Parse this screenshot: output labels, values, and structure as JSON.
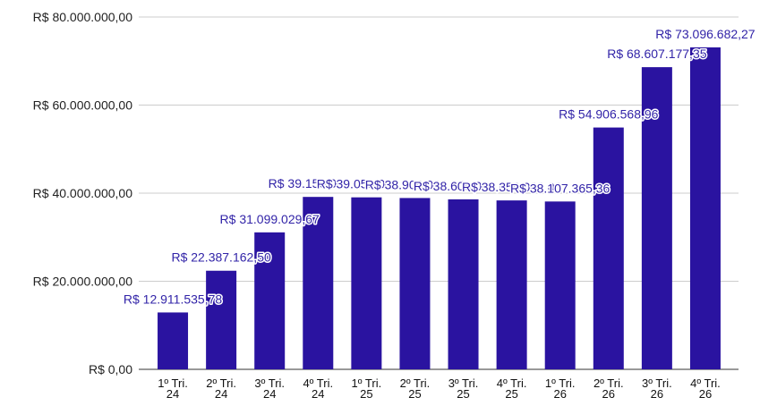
{
  "chart_data": {
    "type": "bar",
    "categories": [
      "1º Tri. 24",
      "2º Tri. 24",
      "3º Tri. 24",
      "4º Tri. 24",
      "1º Tri. 25",
      "2º Tri. 25",
      "3º Tri. 25",
      "4º Tri. 25",
      "1º Tri. 26",
      "2º Tri. 26",
      "3º Tri. 26",
      "4º Tri. 26"
    ],
    "values": [
      12911535.78,
      22387162.5,
      31099029.67,
      39150000,
      39050000,
      38900000,
      38600000,
      38350000,
      38107365.36,
      54906568.96,
      68607177.35,
      73096682.27
    ],
    "value_labels": [
      "R$ 12.911.535,78",
      "R$ 22.387.162,50",
      "R$ 31.099.029,67",
      "R$ 39.150.000,00",
      "R$ 39.050.000,00",
      "R$ 38.900.000,00",
      "R$ 38.600.000,00",
      "R$ 38.350.000,00",
      "R$ 38.107.365,36",
      "R$ 54.906.568,96",
      "R$ 68.607.177,35",
      "R$ 73.096.682,27"
    ],
    "color": "#2a13a0",
    "ylim": [
      0,
      80000000
    ],
    "yticks": [
      {
        "value": 0,
        "label": "R$ 0,00"
      },
      {
        "value": 20000000,
        "label": "R$ 20.000.000,00"
      },
      {
        "value": 40000000,
        "label": "R$ 40.000.000,00"
      },
      {
        "value": 60000000,
        "label": "R$ 60.000.000,00"
      },
      {
        "value": 80000000,
        "label": "R$ 80.000.000,00"
      }
    ],
    "grid": true
  }
}
